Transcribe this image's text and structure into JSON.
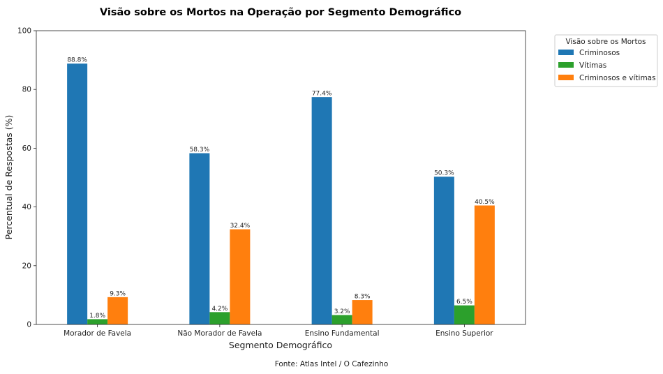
{
  "chart_data": {
    "type": "bar",
    "title": "Visão sobre os Mortos na Operação por Segmento Demográfico",
    "xlabel": "Segmento Demográfico",
    "ylabel": "Percentual de Respostas (%)",
    "ylim": [
      0,
      100
    ],
    "yticks": [
      0,
      20,
      40,
      60,
      80,
      100
    ],
    "grid": false,
    "categories": [
      "Morador de Favela",
      "Não Morador de Favela",
      "Ensino Fundamental",
      "Ensino Superior"
    ],
    "series": [
      {
        "name": "Criminosos",
        "color": "#1f77b4",
        "values": [
          88.8,
          58.3,
          77.4,
          50.3
        ]
      },
      {
        "name": "Vítimas",
        "color": "#2ca02c",
        "values": [
          1.8,
          4.2,
          3.2,
          6.5
        ]
      },
      {
        "name": "Criminosos e vítimas",
        "color": "#ff7f0e",
        "values": [
          9.3,
          32.4,
          8.3,
          40.5
        ]
      }
    ],
    "data_label_suffix": "%",
    "legend": {
      "title": "Visão sobre os Mortos",
      "placement": "outside-top-right"
    },
    "source_note": "Fonte: Atlas Intel / O Cafezinho"
  }
}
